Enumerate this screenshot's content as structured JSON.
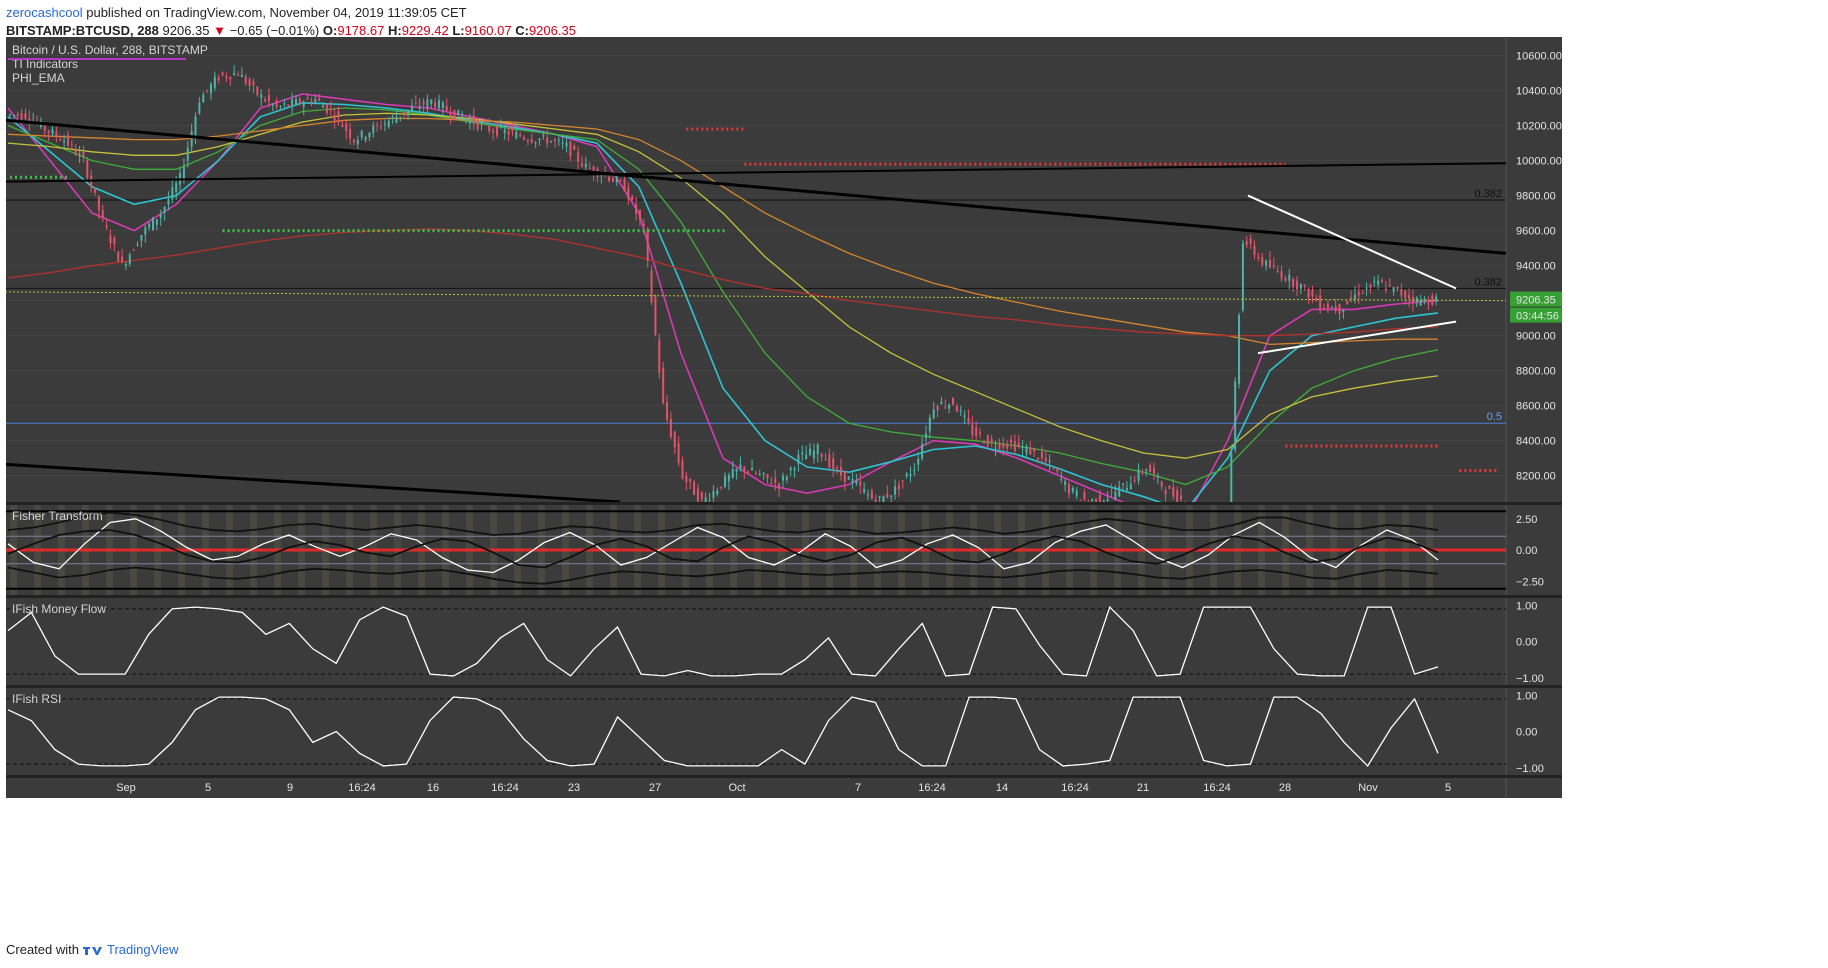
{
  "header": {
    "author": "zerocashcool",
    "published": "published on TradingView.com, November 04, 2019 11:39:05 CET",
    "symbol": "BITSTAMP:BTCUSD, 288",
    "last": "9206.35",
    "change_arrow": "▼",
    "change": "−0.65 (−0.01%)",
    "open_label": "O:",
    "open": "9178.67",
    "high_label": "H:",
    "high": "9229.42",
    "low_label": "L:",
    "low": "9160.07",
    "close_label": "C:",
    "close": "9206.35"
  },
  "footer": {
    "created_with": "Created with",
    "brand": "TradingView"
  },
  "colors": {
    "background": "#3b3b3b",
    "panel_border": "#555555",
    "up": "#4fb4a8",
    "down": "#e0556b",
    "ema_magenta": "#d63bb5",
    "ema_cyan": "#2fc4d4",
    "ema_green": "#3fae3a",
    "ema_yellow": "#c8c23a",
    "ema_orange": "#d6852e",
    "ema_red": "#b5312b",
    "price_badge": "#37a035"
  },
  "chart_data": [
    {
      "type": "candlestick",
      "pane": "price",
      "title_lines": [
        "Bitcoin / U.S. Dollar, 288, BITSTAMP",
        "TI Indicators",
        "PHI_EMA"
      ],
      "ylim": [
        8050,
        10700
      ],
      "yticks": [
        "10600.00",
        "10400.00",
        "10200.00",
        "10000.00",
        "9800.00",
        "9600.00",
        "9400.00",
        "9200.00",
        "9000.00",
        "8800.00",
        "8600.00",
        "8400.00",
        "8200.00"
      ],
      "ytick_values": [
        10600,
        10400,
        10200,
        10000,
        9800,
        9600,
        9400,
        9200,
        9000,
        8800,
        8600,
        8400,
        8200
      ],
      "xticks": [
        "Sep",
        "5",
        "9",
        "16:24",
        "16",
        "16:24",
        "23",
        "27",
        "Oct",
        "7",
        "16:24",
        "14",
        "16:24",
        "21",
        "16:24",
        "28",
        "Nov",
        "5"
      ],
      "close_series": [
        10260,
        10180,
        10120,
        10000,
        9650,
        9400,
        9580,
        9700,
        9900,
        10350,
        10480,
        10500,
        10380,
        10300,
        10330,
        10350,
        10260,
        10120,
        10180,
        10240,
        10300,
        10340,
        10280,
        10230,
        10180,
        10160,
        10130,
        10120,
        10080,
        9960,
        9920,
        9850,
        9600,
        8600,
        8200,
        8050,
        8150,
        8250,
        8200,
        8150,
        8300,
        8350,
        8220,
        8150,
        8050,
        8120,
        8250,
        8600,
        8620,
        8450,
        8380,
        8380,
        8340,
        8260,
        8120,
        8050,
        8080,
        8150,
        8250,
        8120,
        8050,
        7950,
        7500,
        9550,
        9420,
        9350,
        9280,
        9180,
        9150,
        9250,
        9300,
        9250,
        9200,
        9206
      ],
      "last_value": "9206.35",
      "countdown": "03:44:56",
      "fib_labels": [
        {
          "label": "0.382",
          "y": 9775
        },
        {
          "label": "0.382",
          "y": 9270
        },
        {
          "label": "0.5",
          "y": 8500
        }
      ],
      "dotted_levels": [
        {
          "color": "#3fbf4a",
          "y": 9905,
          "x_from": 0,
          "x_to": 3
        },
        {
          "color": "#3fbf4a",
          "y": 9600,
          "x_from": 11,
          "x_to": 37
        },
        {
          "color": "#e03a3a",
          "y": 10180,
          "x_from": 35,
          "x_to": 38
        },
        {
          "color": "#e03a3a",
          "y": 9980,
          "x_from": 38,
          "x_to": 66
        },
        {
          "color": "#e03a3a",
          "y": 8370,
          "x_from": 66,
          "x_to": 74
        },
        {
          "color": "#e03a3a",
          "y": 8230,
          "x_from": 75,
          "x_to": 77
        }
      ],
      "ema_series": [
        {
          "color": "ema_magenta",
          "values": [
            10300,
            10000,
            9700,
            9600,
            9750,
            10000,
            10300,
            10380,
            10350,
            10320,
            10300,
            10250,
            10200,
            10150,
            10080,
            9700,
            8900,
            8300,
            8150,
            8100,
            8150,
            8280,
            8400,
            8380,
            8300,
            8200,
            8100,
            8000,
            7950,
            8400,
            9000,
            9150,
            9150,
            9180,
            9200
          ]
        },
        {
          "color": "ema_cyan",
          "values": [
            10250,
            10050,
            9850,
            9750,
            9800,
            10000,
            10250,
            10330,
            10320,
            10300,
            10270,
            10230,
            10190,
            10150,
            10100,
            9850,
            9300,
            8700,
            8400,
            8250,
            8220,
            8280,
            8350,
            8370,
            8320,
            8240,
            8150,
            8080,
            8000,
            8300,
            8800,
            9000,
            9050,
            9100,
            9130
          ]
        },
        {
          "color": "ema_green",
          "values": [
            10200,
            10100,
            10000,
            9950,
            9950,
            10050,
            10200,
            10280,
            10300,
            10290,
            10260,
            10220,
            10180,
            10150,
            10120,
            9950,
            9650,
            9250,
            8900,
            8650,
            8500,
            8450,
            8420,
            8400,
            8370,
            8330,
            8270,
            8220,
            8150,
            8250,
            8500,
            8700,
            8800,
            8870,
            8920
          ]
        },
        {
          "color": "ema_yellow",
          "values": [
            10100,
            10080,
            10050,
            10030,
            10030,
            10080,
            10150,
            10220,
            10260,
            10270,
            10260,
            10240,
            10210,
            10180,
            10150,
            10050,
            9900,
            9700,
            9450,
            9250,
            9050,
            8900,
            8780,
            8680,
            8580,
            8480,
            8400,
            8330,
            8300,
            8350,
            8550,
            8650,
            8700,
            8740,
            8770
          ]
        },
        {
          "color": "ema_orange",
          "values": [
            10150,
            10140,
            10130,
            10120,
            10120,
            10140,
            10170,
            10200,
            10230,
            10240,
            10240,
            10230,
            10220,
            10200,
            10180,
            10120,
            10000,
            9850,
            9700,
            9580,
            9470,
            9380,
            9300,
            9240,
            9190,
            9140,
            9100,
            9060,
            9020,
            9000,
            8950,
            8960,
            8970,
            8980,
            8980
          ]
        },
        {
          "color": "ema_red",
          "values": [
            9330,
            9360,
            9400,
            9430,
            9460,
            9500,
            9540,
            9570,
            9590,
            9600,
            9610,
            9600,
            9580,
            9550,
            9500,
            9450,
            9380,
            9320,
            9270,
            9240,
            9200,
            9170,
            9140,
            9110,
            9090,
            9060,
            9040,
            9020,
            9010,
            9000,
            9000,
            9010,
            9020,
            9040,
            9050
          ]
        }
      ]
    },
    {
      "type": "oscillator",
      "pane": "fisher",
      "title": "Fisher Transform",
      "ylim": [
        -3.6,
        3.6
      ],
      "yticks": [
        "2.50",
        "0.00",
        "−2.50"
      ],
      "ytick_values": [
        2.5,
        0,
        -2.5
      ],
      "series": [
        {
          "color": "#ffffff",
          "values": [
            0.5,
            -1,
            -1.5,
            0.5,
            2.2,
            2.5,
            1.5,
            0.2,
            -0.8,
            -0.5,
            0.5,
            1.2,
            0.3,
            -0.5,
            0.3,
            1.3,
            0.8,
            -0.6,
            -1.6,
            -1.8,
            -0.8,
            0.6,
            1.4,
            0.4,
            -1.2,
            -0.6,
            0.6,
            1.8,
            1.0,
            -0.6,
            -1.2,
            -0.2,
            1.3,
            0.3,
            -1.4,
            -0.8,
            0.5,
            1.2,
            0.2,
            -1.5,
            -1.0,
            0.6,
            1.5,
            2.0,
            0.8,
            -0.6,
            -1.4,
            -0.4,
            1.2,
            2.2,
            1.0,
            -0.6,
            -1.4,
            0.4,
            1.6,
            0.8,
            -0.8
          ]
        },
        {
          "color": "#111111",
          "values": [
            -0.3,
            0.5,
            1.2,
            1.5,
            1.6,
            1.2,
            0.5,
            -0.4,
            -0.9,
            -1.0,
            -0.6,
            0.2,
            0.7,
            0.4,
            -0.2,
            -0.5,
            0.3,
            0.9,
            0.7,
            -0.2,
            -1.2,
            -1.4,
            -0.6,
            0.4,
            0.9,
            0.3,
            -0.7,
            -0.9,
            0.2,
            1.1,
            0.6,
            -0.4,
            -0.9,
            -0.4,
            0.6,
            1.0,
            0.2,
            -0.8,
            -1.0,
            -0.3,
            0.6,
            1.1,
            0.7,
            -0.2,
            -0.9,
            -1.1,
            -0.4,
            0.5,
            1.1,
            0.8,
            -0.2,
            -1.0,
            -0.7,
            0.3,
            1.0,
            0.6,
            -0.2
          ]
        },
        {
          "color": "#111111",
          "values": [
            1.6,
            1.8,
            2.2,
            2.7,
            3.0,
            2.8,
            2.4,
            1.9,
            1.6,
            1.5,
            1.7,
            2.0,
            2.1,
            1.8,
            1.6,
            1.8,
            2.0,
            1.8,
            1.5,
            1.2,
            1.3,
            1.6,
            1.9,
            1.8,
            1.5,
            1.4,
            1.6,
            2.0,
            2.1,
            1.8,
            1.5,
            1.4,
            1.7,
            1.6,
            1.3,
            1.4,
            1.6,
            1.8,
            1.6,
            1.3,
            1.5,
            1.9,
            2.2,
            2.5,
            2.3,
            1.9,
            1.6,
            1.6,
            2.0,
            2.6,
            2.6,
            2.1,
            1.7,
            1.7,
            2.0,
            1.9,
            1.6
          ]
        },
        {
          "color": "#111111",
          "values": [
            -1.4,
            -1.8,
            -2.2,
            -2.0,
            -1.6,
            -1.4,
            -1.6,
            -1.9,
            -2.2,
            -2.3,
            -2.1,
            -1.7,
            -1.5,
            -1.6,
            -1.8,
            -1.9,
            -1.7,
            -1.6,
            -1.9,
            -2.3,
            -2.6,
            -2.7,
            -2.4,
            -2.0,
            -1.7,
            -1.8,
            -2.0,
            -2.1,
            -1.9,
            -1.6,
            -1.7,
            -1.9,
            -2.0,
            -1.9,
            -1.8,
            -1.7,
            -1.8,
            -2.0,
            -2.1,
            -2.2,
            -2.0,
            -1.7,
            -1.6,
            -1.7,
            -1.9,
            -2.2,
            -2.3,
            -2.0,
            -1.7,
            -1.6,
            -1.8,
            -2.2,
            -2.3,
            -1.9,
            -1.6,
            -1.7,
            -1.9
          ]
        }
      ]
    },
    {
      "type": "oscillator",
      "pane": "ifmf",
      "title": "IFish Money Flow",
      "ylim": [
        -1.2,
        1.2
      ],
      "yticks": [
        "1.00",
        "0.00",
        "−1.00"
      ],
      "ytick_values": [
        1,
        0,
        -1
      ],
      "series": [
        {
          "color": "#ffffff",
          "values": [
            0.3,
            0.8,
            -0.4,
            -0.9,
            -0.9,
            -0.9,
            0.2,
            0.9,
            0.95,
            0.9,
            0.8,
            0.2,
            0.5,
            -0.2,
            -0.6,
            0.6,
            0.95,
            0.7,
            -0.9,
            -0.95,
            -0.6,
            0.1,
            0.5,
            -0.5,
            -0.95,
            -0.2,
            0.4,
            -0.9,
            -0.95,
            -0.8,
            -0.95,
            -0.95,
            -0.9,
            -0.9,
            -0.5,
            0.1,
            -0.9,
            -0.95,
            -0.2,
            0.5,
            -0.95,
            -0.9,
            0.95,
            0.9,
            -0.1,
            -0.9,
            -0.95,
            0.95,
            0.3,
            -0.95,
            -0.9,
            0.95,
            0.95,
            0.95,
            -0.2,
            -0.9,
            -0.95,
            -0.95,
            0.95,
            0.95,
            -0.9,
            -0.7
          ]
        }
      ]
    },
    {
      "type": "oscillator",
      "pane": "ifrsi",
      "title": "IFish RSI",
      "ylim": [
        -1.2,
        1.2
      ],
      "yticks": [
        "1.00",
        "0.00",
        "−1.00"
      ],
      "ytick_values": [
        1,
        0,
        -1
      ],
      "series": [
        {
          "color": "#ffffff",
          "values": [
            0.6,
            0.3,
            -0.5,
            -0.9,
            -0.95,
            -0.95,
            -0.9,
            -0.3,
            0.6,
            0.95,
            0.95,
            0.9,
            0.6,
            -0.3,
            0.0,
            -0.6,
            -0.95,
            -0.9,
            0.3,
            0.95,
            0.9,
            0.6,
            -0.2,
            -0.8,
            -0.95,
            -0.9,
            0.4,
            -0.2,
            -0.8,
            -0.95,
            -0.95,
            -0.95,
            -0.95,
            -0.5,
            -0.9,
            0.3,
            0.95,
            0.8,
            -0.5,
            -0.95,
            -0.95,
            0.95,
            0.95,
            0.9,
            -0.5,
            -0.95,
            -0.9,
            -0.8,
            0.95,
            0.95,
            0.95,
            -0.8,
            -0.95,
            -0.9,
            0.95,
            0.95,
            0.5,
            -0.3,
            -0.95,
            0.1,
            0.9,
            -0.6
          ]
        }
      ]
    }
  ]
}
